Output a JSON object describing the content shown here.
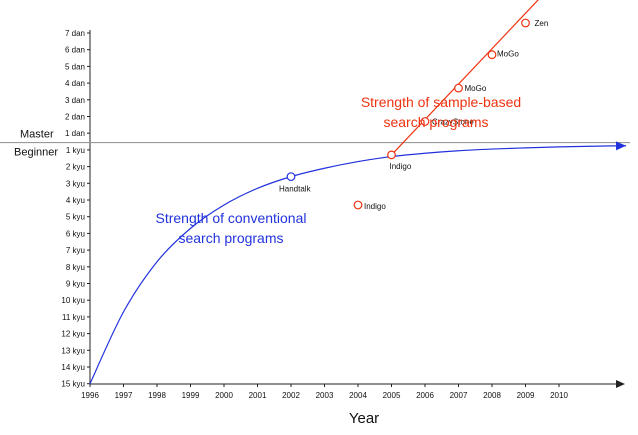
{
  "chart_data": {
    "type": "line",
    "xlabel": "Year",
    "x_ticks": [
      "1996",
      "1997",
      "1998",
      "1999",
      "2000",
      "2001",
      "2002",
      "2003",
      "2004",
      "2005",
      "2006",
      "2007",
      "2008",
      "2009",
      "2010"
    ],
    "y_ticks": [
      "7 dan",
      "6 dan",
      "5 dan",
      "4 dan",
      "3 dan",
      "2 dan",
      "1 dan",
      "1 kyu",
      "2 kyu",
      "3 kyu",
      "4 kyu",
      "5 kyu",
      "6 kyu",
      "7 kyu",
      "8 kyu",
      "9 kyu",
      "10 kyu",
      "11 kyu",
      "12 kyu",
      "13 kyu",
      "14 kyu",
      "15 kyu"
    ],
    "divider": {
      "upper_label": "Master",
      "lower_label": "Beginner"
    },
    "annotations": {
      "conventional": [
        "Strength of conventional",
        "search programs"
      ],
      "sample_based": [
        "Strength of sample-based",
        "search programs"
      ]
    },
    "colors": {
      "conventional": "#2233dd",
      "sample_based": "#ee3311",
      "divider": "#999999"
    },
    "series": [
      {
        "key": "conventional",
        "curve": [
          [
            1996,
            0
          ],
          [
            1997,
            4.3
          ],
          [
            1998,
            7.3
          ],
          [
            1999,
            9.3
          ],
          [
            2000,
            10.7
          ],
          [
            2001,
            11.7
          ],
          [
            2002,
            12.4
          ],
          [
            2003,
            12.9
          ],
          [
            2004,
            13.3
          ],
          [
            2005,
            13.6
          ],
          [
            2006,
            13.8
          ],
          [
            2007,
            13.95
          ],
          [
            2008,
            14.05
          ],
          [
            2009,
            14.12
          ],
          [
            2010,
            14.18
          ],
          [
            2011,
            14.22
          ],
          [
            2012,
            14.25
          ]
        ],
        "points": [
          {
            "x": 2002,
            "y": 12.4,
            "label": "Handtalk"
          }
        ]
      },
      {
        "key": "sample_based",
        "curve": [
          [
            2005,
            13.7
          ],
          [
            2012.5,
            29.6
          ]
        ],
        "points": [
          {
            "x": 2004,
            "y": 10.7,
            "label": "Indigo"
          },
          {
            "x": 2005,
            "y": 13.7,
            "label": "Indigo"
          },
          {
            "x": 2006,
            "y": 15.7,
            "label": "CrazyStone"
          },
          {
            "x": 2007,
            "y": 17.7,
            "label": "MoGo"
          },
          {
            "x": 2008,
            "y": 19.7,
            "label": "MoGo"
          },
          {
            "x": 2009,
            "y": 21.6,
            "label": "Zen"
          }
        ]
      }
    ]
  }
}
